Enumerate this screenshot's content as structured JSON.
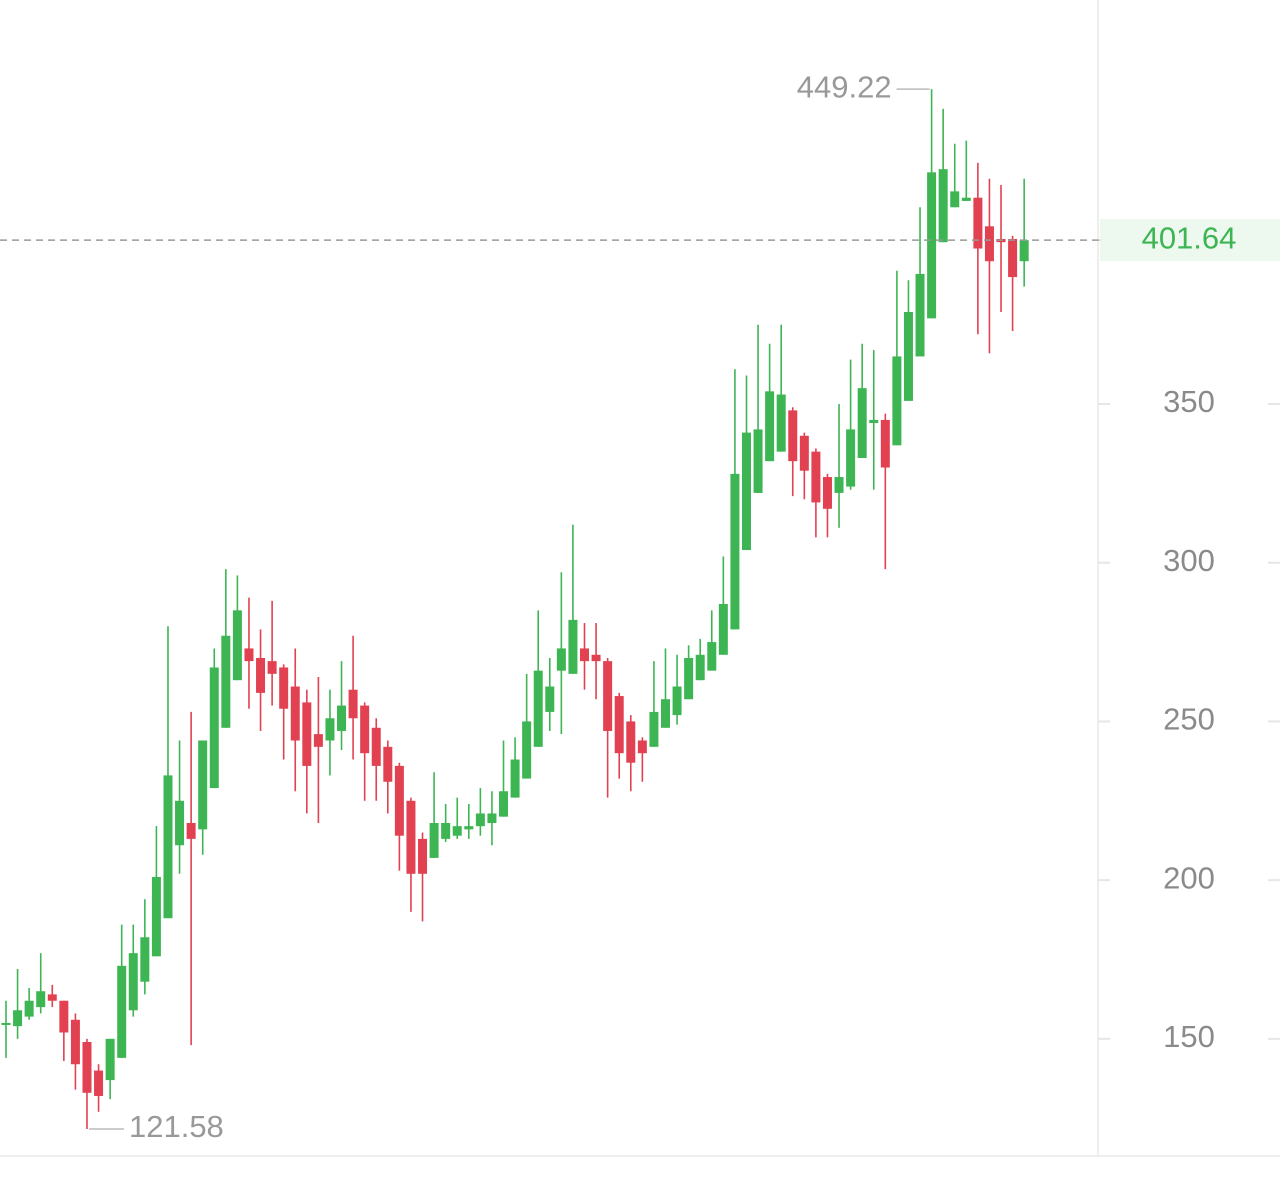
{
  "chart_data": {
    "type": "candlestick",
    "open": [
      155,
      154,
      157,
      160,
      164,
      162,
      156,
      149,
      140,
      137,
      144,
      159,
      168,
      176,
      188,
      211,
      218,
      216,
      229,
      248,
      263,
      273,
      270,
      269,
      267,
      261,
      256,
      246,
      244,
      247,
      260,
      255,
      248,
      242,
      236,
      225,
      213,
      207,
      213,
      214,
      216,
      217,
      218,
      220,
      226,
      232,
      242,
      253,
      266,
      265,
      273,
      271,
      269,
      258,
      250,
      244,
      242,
      248,
      252,
      257,
      263,
      266,
      271,
      279,
      304,
      322,
      332,
      335,
      348,
      340,
      335,
      327,
      322,
      324,
      333,
      344,
      345,
      337,
      351,
      365,
      377,
      401,
      412,
      414,
      415,
      406,
      402,
      402,
      395
    ],
    "high": [
      162,
      172,
      166,
      177,
      167,
      162,
      158,
      150,
      142,
      150,
      186,
      186,
      194,
      217,
      280,
      244,
      253,
      244,
      273,
      298,
      296,
      289,
      279,
      288,
      268,
      273,
      260,
      264,
      260,
      269,
      277,
      256,
      251,
      244,
      237,
      226,
      215,
      234,
      224,
      226,
      224,
      229,
      228,
      244,
      245,
      265,
      285,
      270,
      297,
      312,
      281,
      281,
      270,
      259,
      252,
      245,
      269,
      273,
      271,
      274,
      276,
      285,
      302,
      361,
      359,
      375,
      369,
      375,
      349,
      341,
      336,
      328,
      350,
      364,
      369,
      367,
      347,
      392,
      389,
      412,
      449.22,
      443,
      432,
      433,
      426,
      421,
      419,
      403,
      421
    ],
    "low": [
      144,
      150,
      156,
      158,
      160,
      143,
      134,
      121.58,
      127,
      131,
      144,
      157,
      164,
      176,
      188,
      202,
      148,
      208,
      229,
      248,
      263,
      254,
      247,
      255,
      238,
      228,
      221,
      218,
      233,
      241,
      238,
      225,
      225,
      221,
      203,
      190,
      187,
      207,
      212,
      213,
      213,
      214,
      211,
      220,
      226,
      232,
      242,
      247,
      246,
      265,
      260,
      257,
      226,
      232,
      228,
      231,
      242,
      248,
      249,
      257,
      263,
      266,
      271,
      279,
      304,
      322,
      332,
      335,
      321,
      320,
      308,
      308,
      311,
      323,
      333,
      323,
      298,
      337,
      351,
      365,
      377,
      401,
      412,
      414,
      372,
      366,
      379,
      373,
      387
    ],
    "close": [
      155,
      159,
      162,
      165,
      162,
      152,
      142,
      133,
      132,
      150,
      173,
      177,
      182,
      201,
      233,
      225,
      213,
      244,
      267,
      277,
      285,
      269,
      259,
      265,
      254,
      244,
      236,
      242,
      251,
      255,
      251,
      240,
      236,
      231,
      214,
      202,
      202,
      218,
      218,
      217,
      217,
      221,
      221,
      228,
      238,
      250,
      266,
      261,
      273,
      282,
      269,
      269,
      247,
      240,
      237,
      240,
      253,
      257,
      261,
      270,
      271,
      275,
      287,
      328,
      341,
      342,
      354,
      353,
      332,
      329,
      319,
      317,
      327,
      342,
      355,
      345,
      330,
      365,
      379,
      391,
      423,
      424,
      417,
      415,
      399,
      395,
      401,
      390,
      401.64
    ],
    "up_color": "#3db553",
    "down_color": "#e14150",
    "ylim": [
      113.4,
      477.3
    ],
    "yticks": [
      150,
      200,
      250,
      300,
      350
    ],
    "last_price_line": true
  }
}
